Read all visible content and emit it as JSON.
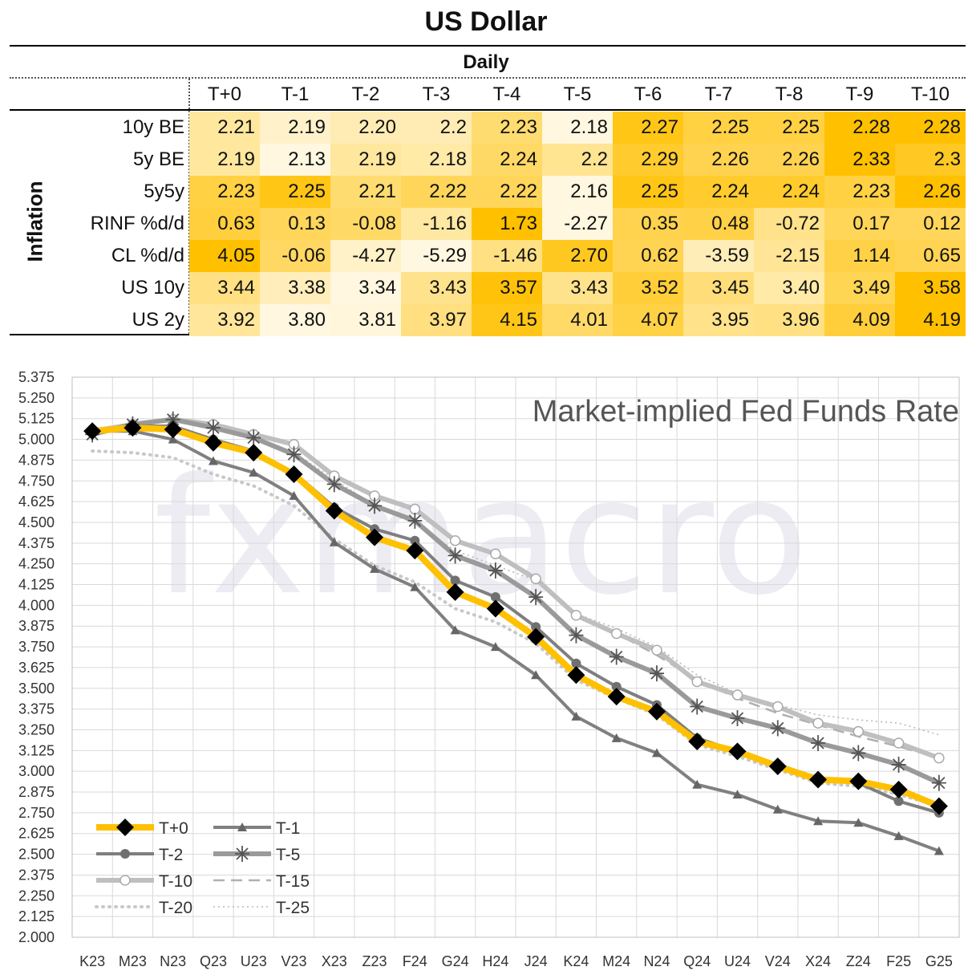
{
  "page": {
    "title": "US Dollar",
    "subtitle": "Daily",
    "side_label": "Inflation"
  },
  "table": {
    "columns": [
      "T+0",
      "T-1",
      "T-2",
      "T-3",
      "T-4",
      "T-5",
      "T-6",
      "T-7",
      "T-8",
      "T-9",
      "T-10"
    ],
    "rows": [
      {
        "label": "10y BE",
        "values": [
          "2.21",
          "2.19",
          "2.20",
          "2.2",
          "2.23",
          "2.18",
          "2.27",
          "2.25",
          "2.25",
          "2.28",
          "2.28"
        ]
      },
      {
        "label": "5y BE",
        "values": [
          "2.19",
          "2.13",
          "2.19",
          "2.18",
          "2.24",
          "2.2",
          "2.29",
          "2.26",
          "2.26",
          "2.33",
          "2.3"
        ]
      },
      {
        "label": "5y5y",
        "values": [
          "2.23",
          "2.25",
          "2.21",
          "2.22",
          "2.22",
          "2.16",
          "2.25",
          "2.24",
          "2.24",
          "2.23",
          "2.26"
        ]
      },
      {
        "label": "RINF %d/d",
        "values": [
          "0.63",
          "0.13",
          "-0.08",
          "-1.16",
          "1.73",
          "-2.27",
          "0.35",
          "0.48",
          "-0.72",
          "0.17",
          "0.12"
        ]
      },
      {
        "label": "CL %d/d",
        "values": [
          "4.05",
          "-0.06",
          "-4.27",
          "-5.29",
          "-1.46",
          "2.70",
          "0.62",
          "-3.59",
          "-2.15",
          "1.14",
          "0.65"
        ]
      },
      {
        "label": "US 10y",
        "values": [
          "3.44",
          "3.38",
          "3.34",
          "3.43",
          "3.57",
          "3.43",
          "3.52",
          "3.45",
          "3.40",
          "3.49",
          "3.58"
        ]
      },
      {
        "label": "US 2y",
        "values": [
          "3.92",
          "3.80",
          "3.81",
          "3.97",
          "4.15",
          "4.01",
          "4.07",
          "3.95",
          "3.96",
          "4.09",
          "4.19"
        ]
      }
    ],
    "colors": {
      "heat_low": "#ffffff",
      "heat_high": "#ffc000"
    }
  },
  "watermark": "fxmacro",
  "chart_data": {
    "type": "line",
    "title": "Market-implied Fed Funds Rate",
    "categories": [
      "K23",
      "M23",
      "N23",
      "Q23",
      "U23",
      "V23",
      "X23",
      "Z23",
      "F24",
      "G24",
      "H24",
      "J24",
      "K24",
      "M24",
      "N24",
      "Q24",
      "U24",
      "V24",
      "X24",
      "Z24",
      "F25",
      "G25"
    ],
    "ylim": [
      2.0,
      5.375
    ],
    "yticks": [
      "2.000",
      "2.125",
      "2.250",
      "2.375",
      "2.500",
      "2.625",
      "2.750",
      "2.875",
      "3.000",
      "3.125",
      "3.250",
      "3.375",
      "3.500",
      "3.625",
      "3.750",
      "3.875",
      "4.000",
      "4.125",
      "4.250",
      "4.375",
      "4.500",
      "4.625",
      "4.750",
      "4.875",
      "5.000",
      "5.125",
      "5.250",
      "5.375"
    ],
    "grid": true,
    "legend": "bottom-left",
    "series": [
      {
        "name": "T-25",
        "color": "#b8b8b8",
        "style": "dotted-thin",
        "marker": "none",
        "values": [
          null,
          null,
          null,
          null,
          null,
          4.92,
          4.76,
          4.6,
          4.49,
          4.33,
          4.24,
          4.15,
          3.95,
          3.86,
          3.75,
          3.58,
          3.47,
          3.4,
          3.34,
          3.31,
          3.29,
          3.22
        ]
      },
      {
        "name": "T-20",
        "color": "#c8c8c8",
        "style": "dotted-thick",
        "marker": "none",
        "values": [
          4.93,
          4.92,
          4.89,
          4.79,
          4.72,
          4.6,
          4.4,
          4.24,
          4.14,
          3.98,
          3.9,
          3.77,
          3.55,
          3.44,
          3.34,
          3.16,
          3.09,
          3.01,
          2.93,
          2.91,
          2.86,
          2.79
        ]
      },
      {
        "name": "T-15",
        "color": "#b0b0b0",
        "style": "dashed",
        "marker": "none",
        "values": [
          null,
          null,
          null,
          null,
          null,
          null,
          null,
          null,
          null,
          null,
          4.32,
          null,
          3.94,
          3.83,
          3.7,
          3.55,
          3.44,
          3.35,
          3.28,
          3.21,
          3.15,
          3.08
        ]
      },
      {
        "name": "T-10",
        "color": "#bfbfbf",
        "style": "solid-thick",
        "marker": "open-circle",
        "values": [
          5.05,
          5.09,
          5.12,
          5.09,
          5.03,
          4.97,
          4.78,
          4.66,
          4.58,
          4.39,
          4.31,
          4.16,
          3.94,
          3.83,
          3.73,
          3.54,
          3.46,
          3.39,
          3.29,
          3.24,
          3.17,
          3.08
        ]
      },
      {
        "name": "T-5",
        "color": "#9a9a9a",
        "style": "solid-thick",
        "marker": "star",
        "values": [
          5.03,
          5.09,
          5.12,
          5.07,
          5.01,
          4.91,
          4.73,
          4.6,
          4.51,
          4.3,
          4.21,
          4.05,
          3.82,
          3.69,
          3.59,
          3.39,
          3.32,
          3.26,
          3.17,
          3.11,
          3.04,
          2.93
        ]
      },
      {
        "name": "T-2",
        "color": "#7f7f7f",
        "style": "solid",
        "marker": "dot",
        "values": [
          5.05,
          5.08,
          5.08,
          5.0,
          4.93,
          4.8,
          4.59,
          4.46,
          4.39,
          4.15,
          4.05,
          3.87,
          3.65,
          3.51,
          3.4,
          3.2,
          3.12,
          3.04,
          2.96,
          2.93,
          2.82,
          2.75
        ]
      },
      {
        "name": "T-1",
        "color": "#808080",
        "style": "solid",
        "marker": "triangle",
        "values": [
          5.05,
          5.05,
          5.0,
          4.87,
          4.8,
          4.66,
          4.38,
          4.22,
          4.11,
          3.85,
          3.75,
          3.58,
          3.33,
          3.2,
          3.11,
          2.92,
          2.86,
          2.77,
          2.7,
          2.69,
          2.61,
          2.52
        ]
      },
      {
        "name": "T+0",
        "color": "#ffc000",
        "style": "solid-thick",
        "marker": "diamond",
        "values": [
          5.05,
          5.07,
          5.06,
          4.98,
          4.92,
          4.79,
          4.57,
          4.41,
          4.33,
          4.08,
          3.98,
          3.81,
          3.58,
          3.45,
          3.36,
          3.18,
          3.12,
          3.03,
          2.95,
          2.94,
          2.89,
          2.79
        ]
      }
    ]
  }
}
